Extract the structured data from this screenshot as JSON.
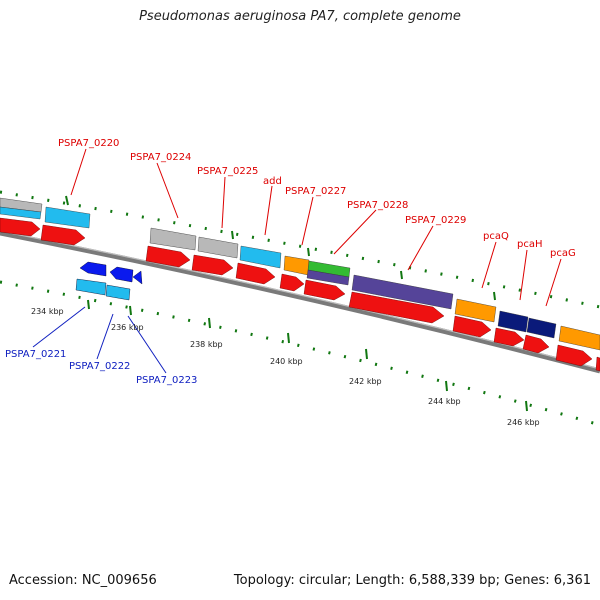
{
  "title": "Pseudomonas aeruginosa PA7, complete genome",
  "footer": {
    "accession": "Accession: NC_009656",
    "stats": "Topology: circular; Length: 6,588,339 bp; Genes: 6,361"
  },
  "ruler_labels": [
    "234 kbp",
    "236 kbp",
    "238 kbp",
    "240 kbp",
    "242 kbp",
    "244 kbp",
    "246 kbp"
  ],
  "gene_labels_top": [
    "PSPA7_0220",
    "PSPA7_0224",
    "PSPA7_0225",
    "add",
    "PSPA7_0227",
    "PSPA7_0228",
    "PSPA7_0229",
    "pcaQ",
    "pcaH",
    "pcaG"
  ],
  "gene_labels_bottom": [
    "PSPA7_0221",
    "PSPA7_0222",
    "PSPA7_0223"
  ],
  "colors": {
    "cds_red": "#ee1111",
    "gray_gene": "#b8b8b8",
    "light_blue": "#22bbee",
    "orange": "#ff9900",
    "green": "#33bb33",
    "purple": "#554499",
    "navy": "#0a1a7a",
    "blue_arrow": "#0a1aee",
    "tick_green": "#117711",
    "backbone": "#7a7a7a",
    "label_top": "#dd0000",
    "label_bottom": "#1020c0"
  }
}
